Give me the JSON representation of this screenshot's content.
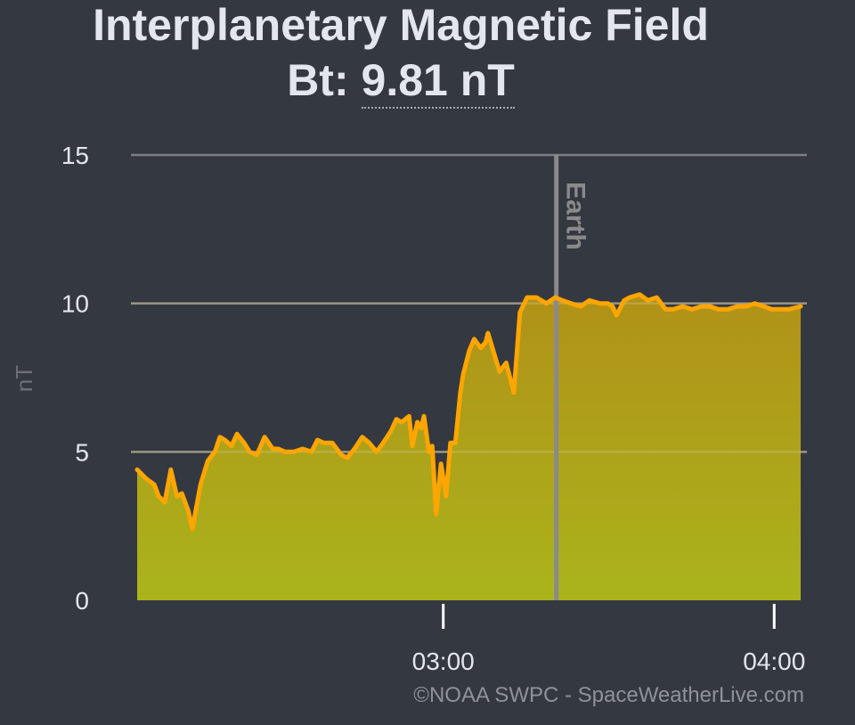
{
  "header": {
    "title": "Interplanetary Magnetic Field",
    "bt_label": "Bt:",
    "bt_value": "9.81 nT"
  },
  "credit": "©NOAA SWPC - SpaceWeatherLive.com",
  "colors": {
    "background": "#343840",
    "line": "#ffa500",
    "fill_top": "#b19118",
    "fill_bottom": "#aab41c",
    "grid": "#7b7d82",
    "marker": "#8a8a8a",
    "text": "#e4e6ef"
  },
  "chart_data": {
    "type": "area",
    "title": "Interplanetary Magnetic Field",
    "xlabel": "",
    "ylabel": "nT",
    "ylim": [
      0,
      15
    ],
    "y_ticks": [
      "0",
      "5",
      "10",
      "15"
    ],
    "x_tick_labels": [
      "03:00",
      "04:00"
    ],
    "x_ticks_min": [
      0,
      60
    ],
    "grid": true,
    "annotations": [
      {
        "label": "Earth",
        "x_min": 20.5
      }
    ],
    "series": [
      {
        "values_x_min": [
          -55.5,
          -53.9,
          -52.4,
          -51.6,
          -50.5,
          -49.4,
          -48.3,
          -47.4,
          -46.2,
          -45.5,
          -44.0,
          -42.7,
          -41.4,
          -40.5,
          -39.6,
          -38.4,
          -37.4,
          -36.1,
          -35.1,
          -33.8,
          -32.4,
          -30.9,
          -29.9,
          -28.7,
          -27.1,
          -25.5,
          -23.9,
          -22.8,
          -21.7,
          -20.1,
          -18.5,
          -17.4,
          -16.1,
          -14.7,
          -13.4,
          -12.1,
          -10.9,
          -9.5,
          -8.5,
          -7.6,
          -6.9,
          -6.2,
          -5.6,
          -4.7,
          -4.0,
          -3.5,
          -2.6,
          -2.0,
          -1.3,
          -0.4,
          0.5,
          1.3,
          2.2,
          3.1,
          3.6,
          4.7,
          5.6,
          6.8,
          7.7,
          8.1,
          10.2,
          11.4,
          12.8,
          13.9,
          15.2,
          16.9,
          18.7,
          20.3,
          21.6,
          23.2,
          24.9,
          26.5,
          28.4,
          29.8,
          30.7,
          31.4,
          32.8,
          33.8,
          35.6,
          37.1,
          38.7,
          40.3,
          41.7,
          43.4,
          45.1,
          46.8,
          48.4,
          49.9,
          51.6,
          53.3,
          54.9,
          56.5,
          58.1,
          59.6,
          61.2,
          62.6,
          64.8
        ],
        "values": [
          4.4,
          4.1,
          3.9,
          3.5,
          3.3,
          4.4,
          3.5,
          3.6,
          3.0,
          2.4,
          3.9,
          4.7,
          5.0,
          5.5,
          5.4,
          5.2,
          5.6,
          5.3,
          5.0,
          4.9,
          5.5,
          5.1,
          5.1,
          5.0,
          5.0,
          5.1,
          5.0,
          5.4,
          5.3,
          5.3,
          4.9,
          4.8,
          5.1,
          5.5,
          5.3,
          5.0,
          5.3,
          5.7,
          6.1,
          6.0,
          6.1,
          6.2,
          5.2,
          6.0,
          5.8,
          6.2,
          5.0,
          5.2,
          2.9,
          4.6,
          3.5,
          5.3,
          5.3,
          7.0,
          7.6,
          8.4,
          8.8,
          8.5,
          8.7,
          9.0,
          7.7,
          8.0,
          7.0,
          9.7,
          10.2,
          10.2,
          10.0,
          10.2,
          10.1,
          10.0,
          9.9,
          10.1,
          10.0,
          10.0,
          9.9,
          9.6,
          10.1,
          10.2,
          10.3,
          10.1,
          10.2,
          9.8,
          9.8,
          9.9,
          9.8,
          9.9,
          9.9,
          9.8,
          9.8,
          9.9,
          9.9,
          10.0,
          9.9,
          9.8,
          9.8,
          9.8,
          9.9
        ]
      }
    ]
  }
}
